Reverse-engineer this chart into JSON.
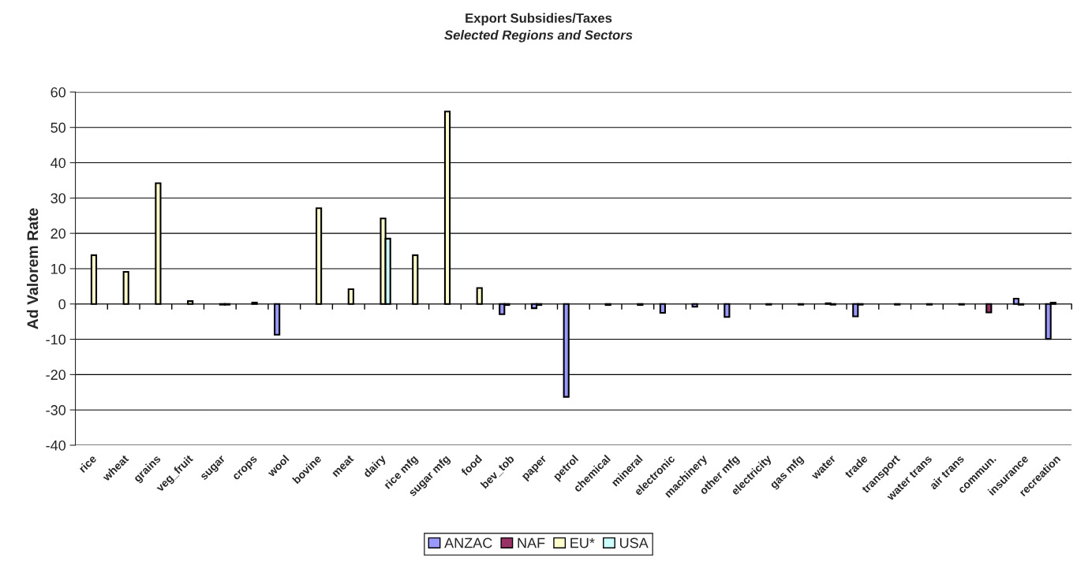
{
  "chart_data": {
    "type": "bar",
    "title": "Export Subsidies/Taxes",
    "subtitle": "Selected Regions and Sectors",
    "ylabel": "Ad Valorem Rate",
    "categories": [
      "rice",
      "wheat",
      "grains",
      "veg_fruit",
      "sugar",
      "crops",
      "wool",
      "bovine",
      "meat",
      "dairy",
      "rice mfg",
      "sugar mfg",
      "food",
      "bev_tob",
      "paper",
      "petrol",
      "chemical",
      "mineral",
      "electronic",
      "machinery",
      "other mfg",
      "electricity",
      "gas mfg",
      "water",
      "trade",
      "transport",
      "water trans",
      "air trans",
      "commun.",
      "insurance",
      "recreation"
    ],
    "series": [
      {
        "name": "ANZAC",
        "color": "#9999ff",
        "values": [
          null,
          null,
          null,
          null,
          null,
          null,
          -8.7,
          null,
          null,
          null,
          null,
          null,
          null,
          -2.9,
          -1.2,
          -26.3,
          null,
          null,
          -2.5,
          -0.8,
          -3.7,
          null,
          null,
          null,
          -3.5,
          null,
          null,
          null,
          null,
          1.5,
          -9.9
        ]
      },
      {
        "name": "NAF",
        "color": "#993366",
        "values": [
          null,
          null,
          null,
          null,
          null,
          null,
          null,
          null,
          null,
          null,
          null,
          null,
          null,
          -0.3,
          -0.3,
          null,
          null,
          null,
          null,
          null,
          null,
          null,
          null,
          0.2,
          -0.2,
          null,
          null,
          null,
          -2.4,
          -0.2,
          0.4
        ]
      },
      {
        "name": "EU*",
        "color": "#ffffcc",
        "values": [
          13.8,
          9.1,
          34.2,
          0.8,
          -0.2,
          0.4,
          null,
          27.1,
          4.2,
          24.2,
          13.8,
          54.5,
          4.5,
          null,
          null,
          null,
          -0.3,
          -0.3,
          null,
          null,
          null,
          -0.2,
          -0.2,
          -0.2,
          null,
          -0.2,
          -0.2,
          -0.2,
          null,
          null,
          null
        ]
      },
      {
        "name": "USA",
        "color": "#ccffff",
        "values": [
          null,
          null,
          null,
          null,
          -0.2,
          null,
          null,
          null,
          null,
          18.5,
          null,
          null,
          null,
          null,
          null,
          null,
          null,
          null,
          null,
          null,
          null,
          null,
          null,
          null,
          null,
          null,
          null,
          null,
          null,
          null,
          null
        ]
      }
    ],
    "ylim": [
      -40,
      60
    ],
    "yticks": [
      -40,
      -30,
      -20,
      -10,
      0,
      10,
      20,
      30,
      40,
      50,
      60
    ],
    "grid": "y",
    "legend": "bottom"
  }
}
